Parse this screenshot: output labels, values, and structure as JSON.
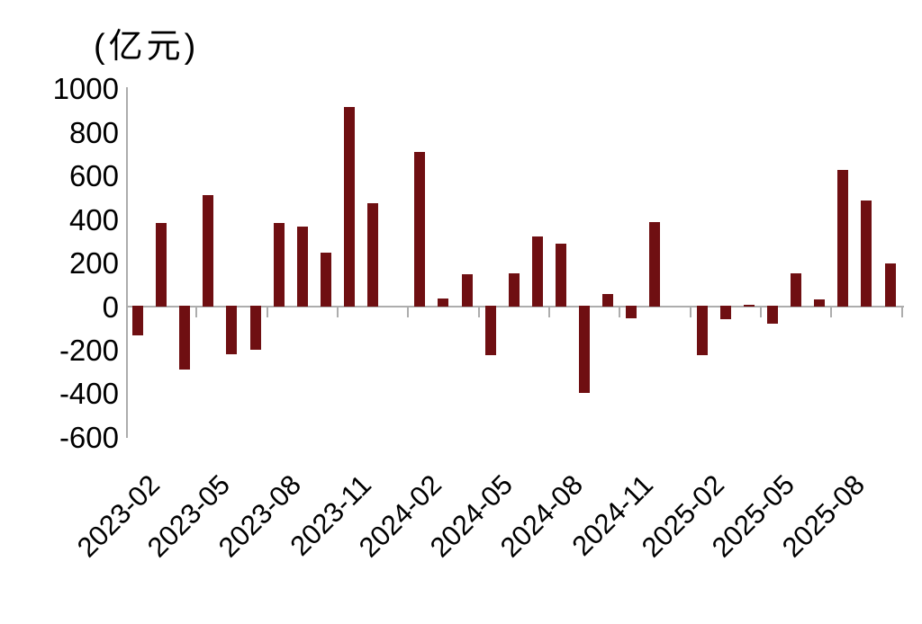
{
  "chart_data": {
    "type": "bar",
    "title": "(亿元)",
    "xlabel": "",
    "ylabel": "(亿元)",
    "categories": [
      "2023-02",
      "2023-03",
      "2023-04",
      "2023-05",
      "2023-06",
      "2023-07",
      "2023-08",
      "2023-09",
      "2023-10",
      "2023-11",
      "2023-12",
      "2024-01",
      "2024-02",
      "2024-03",
      "2024-04",
      "2024-05",
      "2024-06",
      "2024-07",
      "2024-08",
      "2024-09",
      "2024-10",
      "2024-11",
      "2024-12",
      "2025-01",
      "2025-02",
      "2025-03",
      "2025-04",
      "2025-05",
      "2025-06",
      "2025-07",
      "2025-08",
      "2025-09",
      "2025-10"
    ],
    "values": [
      -130,
      385,
      -285,
      515,
      -215,
      -195,
      385,
      370,
      250,
      920,
      475,
      0,
      710,
      40,
      150,
      -220,
      155,
      325,
      290,
      -395,
      60,
      -50,
      390,
      0,
      -220,
      -55,
      10,
      -75,
      155,
      35,
      630,
      490,
      200
    ],
    "x_axis_tick_labels": [
      "2023-02",
      "2023-05",
      "2023-08",
      "2023-11",
      "2024-02",
      "2024-05",
      "2024-08",
      "2024-11",
      "2025-02",
      "2025-05",
      "2025-08"
    ],
    "y_axis_ticks": [
      1000,
      800,
      600,
      400,
      200,
      0,
      -200,
      -400,
      -600
    ],
    "ylim": [
      -600,
      1000
    ],
    "grid": false,
    "legend": "none",
    "colors": {
      "bar": "#6F0F12",
      "axis": "#ADADAD",
      "text": "#000000",
      "background": "#FFFFFF"
    }
  }
}
